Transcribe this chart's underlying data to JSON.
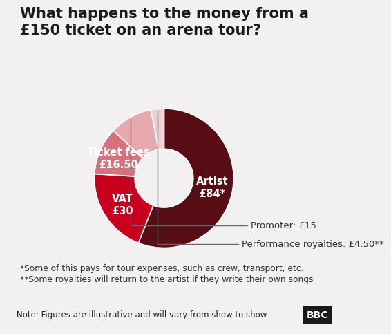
{
  "title": "What happens to the money from a\n£150 ticket on an arena tour?",
  "slices": [
    {
      "label": "Artist\n£84*",
      "value": 84,
      "color": "#580d14",
      "text_color": "white",
      "inside": true
    },
    {
      "label": "VAT\n£30",
      "value": 30,
      "color": "#c8001e",
      "text_color": "white",
      "inside": true
    },
    {
      "label": "Ticket fees\n£16.50",
      "value": 16.5,
      "color": "#d4737e",
      "text_color": "white",
      "inside": true
    },
    {
      "label": "Promoter: £15",
      "value": 15,
      "color": "#e8a8b0",
      "text_color": "#333333",
      "inside": false
    },
    {
      "label": "Performance royalties: £4.50**",
      "value": 4.5,
      "color": "#f2cdd2",
      "text_color": "#333333",
      "inside": false
    }
  ],
  "footnote1": "*Some of this pays for tour expenses, such as crew, transport, etc.",
  "footnote2": "**Some royalties will return to the artist if they write their own songs",
  "note": "Note: Figures are illustrative and will vary from show to show",
  "bbc_logo": "BBC",
  "background_color": "#f2f0f0",
  "title_fontsize": 15,
  "label_fontsize": 10.5,
  "annot_fontsize": 9.5,
  "note_fontsize": 8.5,
  "donut_width": 0.58
}
